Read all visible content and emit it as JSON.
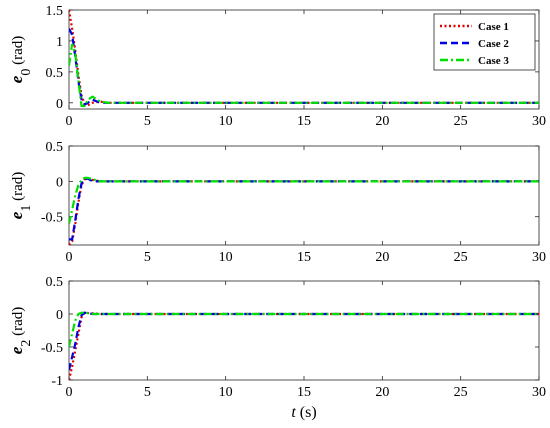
{
  "chart_data": [
    {
      "type": "line",
      "ylabel": {
        "symbol": "e",
        "sub": "0",
        "unit": "(rad)"
      },
      "xlim": [
        0,
        30
      ],
      "ylim": [
        -0.1,
        1.5
      ],
      "yticks": [
        0,
        0.5,
        1,
        1.5
      ],
      "yticklabels": [
        "0",
        "0.5",
        "1",
        "1.5"
      ],
      "xticks": [
        0,
        5,
        10,
        15,
        20,
        25,
        30
      ],
      "xticklabels": [
        "0",
        "5",
        "10",
        "15",
        "20",
        "25",
        "30"
      ],
      "legend": {
        "placement": "top-right",
        "entries": [
          "Case 1",
          "Case 2",
          "Case 3"
        ]
      },
      "series": [
        {
          "name": "Case 1",
          "color": "#e00000",
          "dash": "dotted",
          "x": [
            0,
            0.2,
            0.4,
            0.6,
            0.8,
            1.0,
            1.2,
            1.5,
            2.0,
            2.5,
            30
          ],
          "y": [
            1.5,
            1.2,
            0.85,
            0.45,
            0.12,
            -0.02,
            -0.04,
            0.0,
            0.02,
            0.0,
            0.0
          ]
        },
        {
          "name": "Case 2",
          "color": "#0000e0",
          "dash": "dashed",
          "x": [
            0,
            0.2,
            0.4,
            0.6,
            0.8,
            1.0,
            1.2,
            1.5,
            2.0,
            2.5,
            30
          ],
          "y": [
            1.2,
            1.1,
            0.75,
            0.35,
            0.05,
            -0.03,
            0.0,
            0.05,
            0.0,
            0.0,
            0.0
          ]
        },
        {
          "name": "Case 3",
          "color": "#00e000",
          "dash": "dashdot",
          "x": [
            0,
            0.2,
            0.4,
            0.6,
            0.8,
            1.0,
            1.2,
            1.5,
            2.0,
            2.5,
            30
          ],
          "y": [
            0.6,
            0.95,
            0.8,
            0.35,
            -0.05,
            -0.05,
            0.05,
            0.1,
            0.02,
            0.0,
            0.0
          ]
        }
      ]
    },
    {
      "type": "line",
      "ylabel": {
        "symbol": "e",
        "sub": "1",
        "unit": "(rad)"
      },
      "xlim": [
        0,
        30
      ],
      "ylim": [
        -0.9,
        0.5
      ],
      "yticks": [
        -0.5,
        0,
        0.5
      ],
      "yticklabels": [
        "-0.5",
        "0",
        "0.5"
      ],
      "xticks": [
        0,
        5,
        10,
        15,
        20,
        25,
        30
      ],
      "xticklabels": [
        "0",
        "5",
        "10",
        "15",
        "20",
        "25",
        "30"
      ],
      "series": [
        {
          "name": "Case 1",
          "color": "#e00000",
          "dash": "dotted",
          "x": [
            0,
            0.2,
            0.4,
            0.6,
            0.8,
            1.0,
            1.2,
            1.5,
            2.0,
            30
          ],
          "y": [
            -0.9,
            -0.85,
            -0.6,
            -0.3,
            -0.05,
            0.03,
            0.05,
            0.02,
            0.0,
            0.0
          ]
        },
        {
          "name": "Case 2",
          "color": "#0000e0",
          "dash": "dashed",
          "x": [
            0,
            0.2,
            0.4,
            0.6,
            0.8,
            1.0,
            1.2,
            1.5,
            2.0,
            30
          ],
          "y": [
            -0.82,
            -0.82,
            -0.55,
            -0.25,
            -0.03,
            0.03,
            0.04,
            0.0,
            0.0,
            0.0
          ]
        },
        {
          "name": "Case 3",
          "color": "#00e000",
          "dash": "dashdot",
          "x": [
            0,
            0.2,
            0.4,
            0.6,
            0.8,
            1.0,
            1.2,
            1.5,
            2.0,
            30
          ],
          "y": [
            -0.6,
            -0.4,
            -0.2,
            -0.05,
            0.02,
            0.05,
            0.05,
            0.03,
            0.0,
            0.0
          ]
        }
      ]
    },
    {
      "type": "line",
      "ylabel": {
        "symbol": "e",
        "sub": "2",
        "unit": "(rad)"
      },
      "xlabel": {
        "symbol": "t",
        "unit": "(s)"
      },
      "xlim": [
        0,
        30
      ],
      "ylim": [
        -1,
        0.5
      ],
      "yticks": [
        -1,
        -0.5,
        0,
        0.5
      ],
      "yticklabels": [
        "-1",
        "-0.5",
        "0",
        "0.5"
      ],
      "xticks": [
        0,
        5,
        10,
        15,
        20,
        25,
        30
      ],
      "xticklabels": [
        "0",
        "5",
        "10",
        "15",
        "20",
        "25",
        "30"
      ],
      "series": [
        {
          "name": "Case 1",
          "color": "#e00000",
          "dash": "dotted",
          "x": [
            0,
            0.2,
            0.4,
            0.6,
            0.8,
            1.0,
            1.5,
            2.0,
            30
          ],
          "y": [
            -1.0,
            -0.8,
            -0.55,
            -0.3,
            -0.05,
            0.02,
            0.01,
            0.0,
            0.0
          ]
        },
        {
          "name": "Case 2",
          "color": "#0000e0",
          "dash": "dashed",
          "x": [
            0,
            0.2,
            0.4,
            0.6,
            0.8,
            1.0,
            1.5,
            2.0,
            30
          ],
          "y": [
            -0.85,
            -0.65,
            -0.45,
            -0.2,
            -0.02,
            0.02,
            0.0,
            0.0,
            0.0
          ]
        },
        {
          "name": "Case 3",
          "color": "#00e000",
          "dash": "dashdot",
          "x": [
            0,
            0.2,
            0.4,
            0.6,
            0.8,
            1.0,
            1.5,
            2.0,
            30
          ],
          "y": [
            -0.5,
            -0.3,
            -0.1,
            0.0,
            0.02,
            0.02,
            0.0,
            0.0,
            0.0
          ]
        }
      ]
    }
  ]
}
